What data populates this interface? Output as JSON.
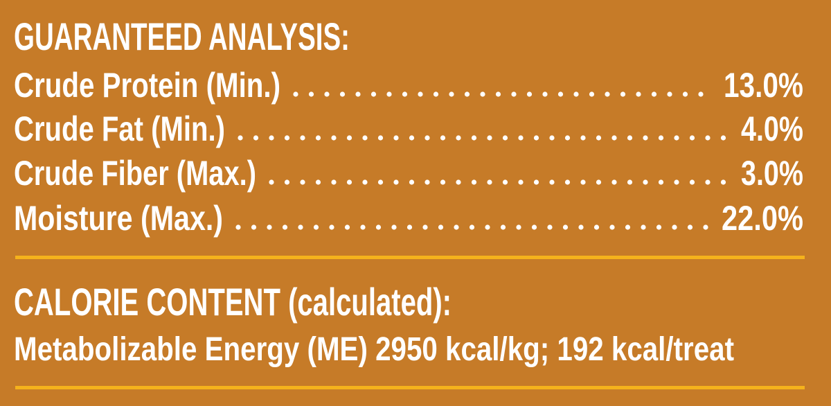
{
  "title": "GUARANTEED ANALYSIS:",
  "rows": [
    {
      "label": "Crude Protein (Min.)",
      "value": "13.0%"
    },
    {
      "label": "Crude Fat (Min.)",
      "value": "4.0%"
    },
    {
      "label": "Crude Fiber (Max.)",
      "value": "3.0%"
    },
    {
      "label": "Moisture (Max.)",
      "value": "22.0%"
    }
  ],
  "calorie": {
    "heading": "CALORIE CONTENT (calculated):",
    "text": "Metabolizable Energy (ME) 2950 kcal/kg; 192 kcal/treat"
  }
}
